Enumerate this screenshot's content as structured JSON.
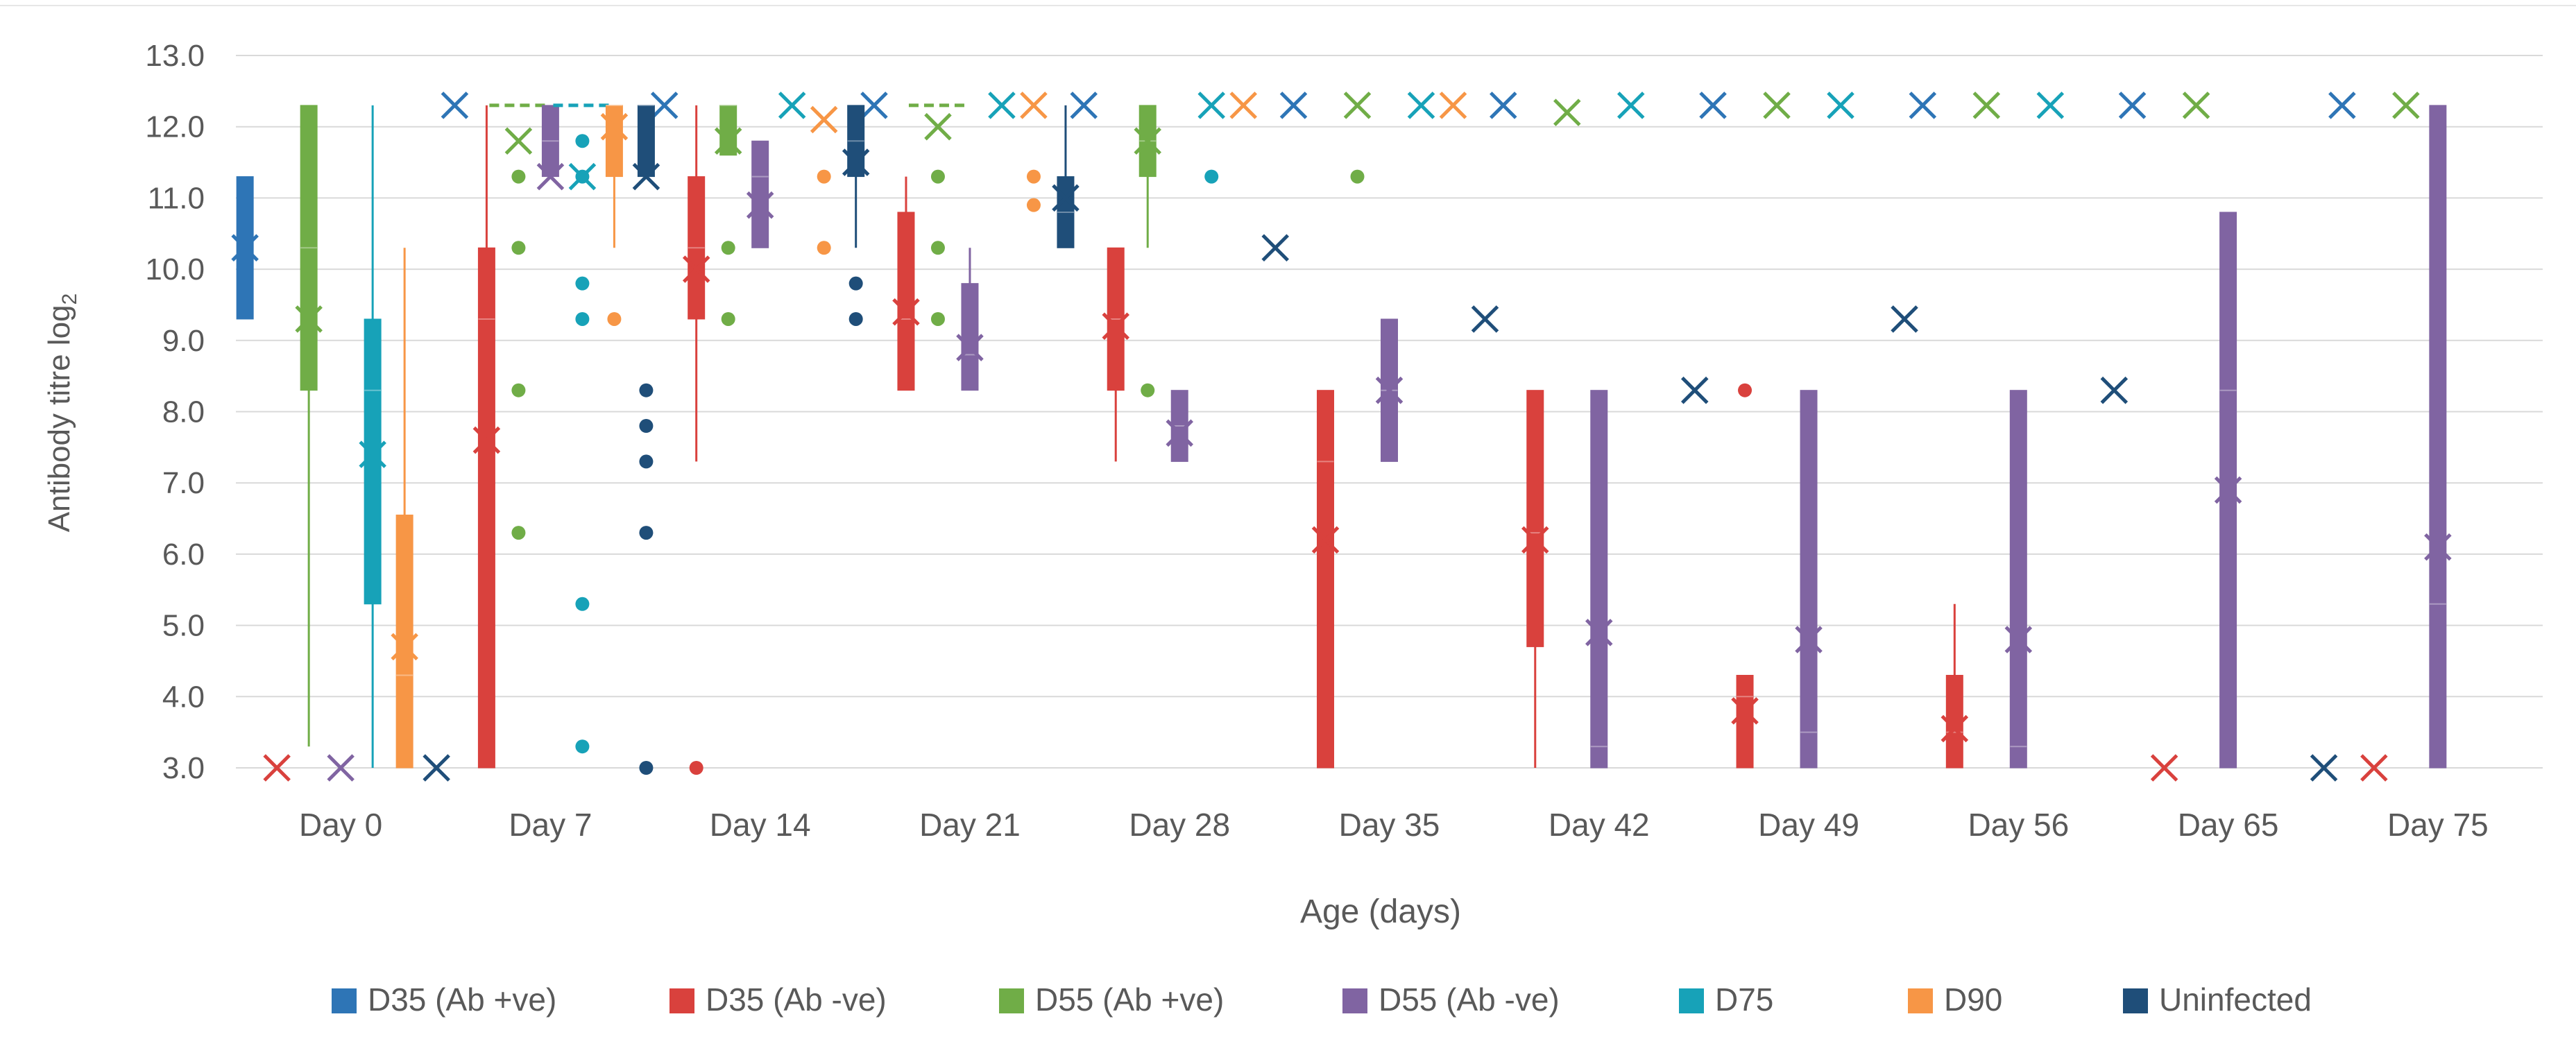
{
  "chart_data": {
    "type": "box",
    "xlabel": "Age (days)",
    "ylabel_main": "Antibody titre log",
    "ylabel_sub": "2",
    "ylim": [
      3.0,
      13.0
    ],
    "yticks": [
      "3.0",
      "4.0",
      "5.0",
      "6.0",
      "7.0",
      "8.0",
      "9.0",
      "10.0",
      "11.0",
      "12.0",
      "13.0"
    ],
    "ytick_values": [
      3,
      4,
      5,
      6,
      7,
      8,
      9,
      10,
      11,
      12,
      13
    ],
    "grid": "horizontal",
    "legend_position": "bottom",
    "categories": [
      "Day 0",
      "Day 7",
      "Day 14",
      "Day 21",
      "Day 28",
      "Day 35",
      "Day 42",
      "Day 49",
      "Day 56",
      "Day 65",
      "Day 75"
    ],
    "series": [
      {
        "name": "D35 (Ab +ve)",
        "color": "#2e75b6",
        "boxes": [
          {
            "cat": 0,
            "q1": 9.3,
            "q3": 11.3,
            "mean": 10.3
          },
          {
            "cat": 1,
            "mean": 12.3
          },
          {
            "cat": 2,
            "mean": 12.3
          },
          {
            "cat": 3,
            "mean": 12.3
          },
          {
            "cat": 4,
            "mean": 12.3
          },
          {
            "cat": 5,
            "mean": 12.3
          },
          {
            "cat": 6,
            "mean": 12.3
          },
          {
            "cat": 7,
            "mean": 12.3
          },
          {
            "cat": 8,
            "mean": 12.3
          },
          {
            "cat": 9,
            "mean": 12.3
          },
          {
            "cat": 10,
            "mean": 12.3
          }
        ]
      },
      {
        "name": "D35 (Ab -ve)",
        "color": "#d9413d",
        "boxes": [
          {
            "cat": 0,
            "mean": 3.0
          },
          {
            "cat": 1,
            "q1": 3.0,
            "q3": 10.3,
            "median": 9.3,
            "whisker_high": 12.3,
            "mean": 7.6
          },
          {
            "cat": 2,
            "q1": 9.3,
            "q3": 11.3,
            "median": 10.3,
            "whisker_low": 7.3,
            "whisker_high": 12.3,
            "mean": 10.0,
            "outliers": [
              3.0
            ]
          },
          {
            "cat": 3,
            "q1": 8.3,
            "q3": 10.8,
            "median": 9.3,
            "whisker_high": 11.3,
            "mean": 9.4
          },
          {
            "cat": 4,
            "q1": 8.3,
            "q3": 10.3,
            "median": 9.3,
            "whisker_low": 7.3,
            "mean": 9.2
          },
          {
            "cat": 5,
            "q1": 3.0,
            "q3": 8.3,
            "median": 7.3,
            "mean": 6.2
          },
          {
            "cat": 6,
            "q1": 4.7,
            "q3": 8.3,
            "median": 6.3,
            "whisker_low": 3.0,
            "mean": 6.2
          },
          {
            "cat": 7,
            "q1": 3.0,
            "q3": 4.3,
            "median": 4.0,
            "mean": 3.8,
            "outliers": [
              8.3
            ]
          },
          {
            "cat": 8,
            "q1": 3.0,
            "q3": 4.3,
            "median": 3.5,
            "whisker_high": 5.3,
            "mean": 3.55
          },
          {
            "cat": 9,
            "mean": 3.0
          },
          {
            "cat": 10,
            "mean": 3.0
          }
        ]
      },
      {
        "name": "D55 (Ab +ve)",
        "color": "#70ad47",
        "boxes": [
          {
            "cat": 0,
            "q1": 8.3,
            "q3": 12.3,
            "median": 10.3,
            "whisker_low": 3.3,
            "mean": 9.3
          },
          {
            "cat": 1,
            "q1": 12.3,
            "q3": 12.3,
            "median": 12.3,
            "mean": 11.8,
            "outliers": [
              11.3,
              10.3,
              8.3,
              6.3
            ]
          },
          {
            "cat": 2,
            "q1": 11.6,
            "q3": 12.3,
            "median": 12.3,
            "mean": 11.8,
            "outliers": [
              10.3,
              9.3
            ]
          },
          {
            "cat": 3,
            "q1": 12.3,
            "q3": 12.3,
            "median": 12.3,
            "mean": 12.0,
            "outliers": [
              11.3,
              10.3,
              9.3
            ]
          },
          {
            "cat": 4,
            "q1": 11.3,
            "q3": 12.3,
            "median": 11.8,
            "whisker_low": 10.3,
            "mean": 11.8,
            "outliers": [
              8.3
            ]
          },
          {
            "cat": 5,
            "mean": 12.3,
            "outliers": [
              11.3
            ]
          },
          {
            "cat": 6,
            "mean": 12.2
          },
          {
            "cat": 7,
            "mean": 12.3
          },
          {
            "cat": 8,
            "mean": 12.3
          },
          {
            "cat": 9,
            "mean": 12.3
          },
          {
            "cat": 10,
            "mean": 12.3
          }
        ]
      },
      {
        "name": "D55 (Ab -ve)",
        "color": "#8064a2",
        "boxes": [
          {
            "cat": 0,
            "mean": 3.0
          },
          {
            "cat": 1,
            "q1": 11.3,
            "q3": 12.3,
            "median": 11.8,
            "mean": 11.3
          },
          {
            "cat": 2,
            "q1": 10.3,
            "q3": 11.8,
            "median": 11.3,
            "mean": 10.9
          },
          {
            "cat": 3,
            "q1": 8.3,
            "q3": 9.8,
            "median": 8.8,
            "whisker_high": 10.3,
            "mean": 8.9
          },
          {
            "cat": 4,
            "q1": 7.3,
            "q3": 8.3,
            "median": 7.8,
            "mean": 7.7
          },
          {
            "cat": 5,
            "q1": 7.3,
            "q3": 9.3,
            "median": 8.3,
            "mean": 8.3
          },
          {
            "cat": 6,
            "q1": 3.0,
            "q3": 8.3,
            "median": 3.3,
            "mean": 4.9
          },
          {
            "cat": 7,
            "q1": 3.0,
            "q3": 8.3,
            "median": 3.5,
            "mean": 4.8
          },
          {
            "cat": 8,
            "q1": 3.0,
            "q3": 8.3,
            "median": 3.3,
            "mean": 4.8
          },
          {
            "cat": 9,
            "q1": 3.0,
            "q3": 10.8,
            "median": 8.3,
            "mean": 6.9
          },
          {
            "cat": 10,
            "q1": 3.0,
            "q3": 12.3,
            "median": 5.3,
            "mean": 6.1
          }
        ]
      },
      {
        "name": "D75",
        "color": "#17a2b8",
        "boxes": [
          {
            "cat": 0,
            "q1": 5.3,
            "q3": 9.3,
            "median": 8.3,
            "whisker_low": 3.0,
            "whisker_high": 12.3,
            "mean": 7.4
          },
          {
            "cat": 1,
            "q1": 12.3,
            "q3": 12.3,
            "median": 12.3,
            "mean": 11.3,
            "outliers": [
              11.8,
              11.3,
              9.8,
              9.3,
              5.3,
              3.3
            ]
          },
          {
            "cat": 2,
            "mean": 12.3
          },
          {
            "cat": 3,
            "mean": 12.3
          },
          {
            "cat": 4,
            "mean": 12.3,
            "outliers": [
              11.3
            ]
          },
          {
            "cat": 5,
            "mean": 12.3
          },
          {
            "cat": 6,
            "mean": 12.3
          },
          {
            "cat": 7,
            "mean": 12.3
          },
          {
            "cat": 8,
            "mean": 12.3
          }
        ]
      },
      {
        "name": "D90",
        "color": "#f79646",
        "boxes": [
          {
            "cat": 0,
            "q1": 3.0,
            "q3": 6.55,
            "median": 4.3,
            "whisker_high": 10.3,
            "mean": 4.7
          },
          {
            "cat": 1,
            "q1": 11.3,
            "q3": 12.3,
            "median": 12.3,
            "whisker_low": 10.3,
            "mean": 12.0,
            "outliers": [
              9.3
            ]
          },
          {
            "cat": 2,
            "mean": 12.1,
            "outliers": [
              11.3,
              10.3
            ]
          },
          {
            "cat": 3,
            "mean": 12.3,
            "outliers": [
              11.3,
              10.9
            ]
          },
          {
            "cat": 4,
            "mean": 12.3
          },
          {
            "cat": 5,
            "mean": 12.3
          }
        ]
      },
      {
        "name": "Uninfected",
        "color": "#1f4e79",
        "boxes": [
          {
            "cat": 0,
            "mean": 3.0
          },
          {
            "cat": 1,
            "q1": 11.3,
            "q3": 12.3,
            "median": 12.3,
            "mean": 11.3,
            "outliers": [
              8.3,
              7.8,
              7.3,
              6.3,
              3.0
            ]
          },
          {
            "cat": 2,
            "q1": 11.3,
            "q3": 12.3,
            "median": 11.8,
            "whisker_low": 10.3,
            "mean": 11.5,
            "outliers": [
              9.8,
              9.3
            ]
          },
          {
            "cat": 3,
            "q1": 10.3,
            "q3": 11.3,
            "median": 10.8,
            "whisker_high": 12.3,
            "mean": 11.0
          },
          {
            "cat": 4,
            "mean": 10.3
          },
          {
            "cat": 5,
            "mean": 9.3
          },
          {
            "cat": 6,
            "mean": 8.3
          },
          {
            "cat": 7,
            "mean": 9.3
          },
          {
            "cat": 8,
            "mean": 8.3
          },
          {
            "cat": 9,
            "mean": 3.0
          }
        ]
      }
    ]
  }
}
